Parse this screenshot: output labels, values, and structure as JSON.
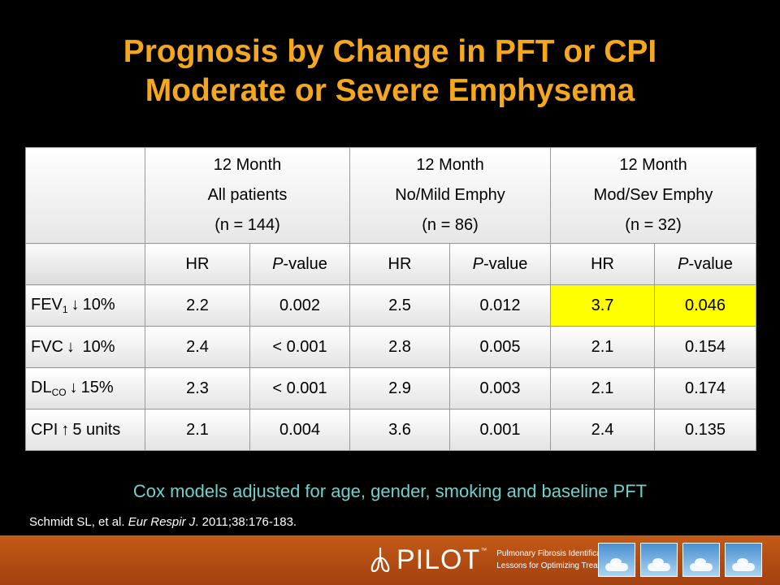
{
  "title": {
    "line1": "Prognosis by Change in PFT or CPI",
    "line2": "Moderate or Severe Emphysema"
  },
  "table": {
    "groups": [
      {
        "line1": "12 Month",
        "line2": "All patients",
        "line3": "(n = 144)"
      },
      {
        "line1": "12 Month",
        "line2": "No/Mild Emphy",
        "line3": "(n = 86)"
      },
      {
        "line1": "12 Month",
        "line2": "Mod/Sev Emphy",
        "line3": "(n = 32)"
      }
    ],
    "sub_headers": {
      "hr": "HR",
      "p_italic": "P",
      "p_rest": "-value"
    },
    "rows": [
      {
        "label_main": "FEV",
        "label_sub": "1",
        "arrow": "↓",
        "label_rest": "10%",
        "values": [
          "2.2",
          "0.002",
          "2.5",
          "0.012",
          "3.7",
          "0.046"
        ],
        "highlight": "#ffff00"
      },
      {
        "label_main": "FVC",
        "label_sub": "",
        "arrow": "↓",
        "label_rest": " 10%",
        "values": [
          "2.4",
          "< 0.001",
          "2.8",
          "0.005",
          "2.1",
          "0.154"
        ]
      },
      {
        "label_main": "DL",
        "label_sub": "CO",
        "arrow": "↓",
        "label_rest": "15%",
        "values": [
          "2.3",
          "< 0.001",
          "2.9",
          "0.003",
          "2.1",
          "0.174"
        ]
      },
      {
        "label_main": "CPI",
        "label_sub": "",
        "arrow": "↑",
        "label_rest": "5 units",
        "values": [
          "2.1",
          "0.004",
          "3.6",
          "0.001",
          "2.4",
          "0.135"
        ]
      }
    ]
  },
  "note": "Cox models adjusted for age, gender, smoking and baseline PFT",
  "reference": {
    "authors": "Schmidt SL, et al. ",
    "journal": "Eur Respir J",
    "details": ". 2011;38:176-183."
  },
  "footer": {
    "logo_text": "PILOT",
    "trademark": "™",
    "tagline_line1": "Pulmonary Fibrosis Identification:",
    "tagline_line2": "Lessons for Optimizing Treatment",
    "colors": {
      "band": "#b84e14",
      "title": "#f5a81d",
      "note": "#6dd3cb"
    }
  }
}
